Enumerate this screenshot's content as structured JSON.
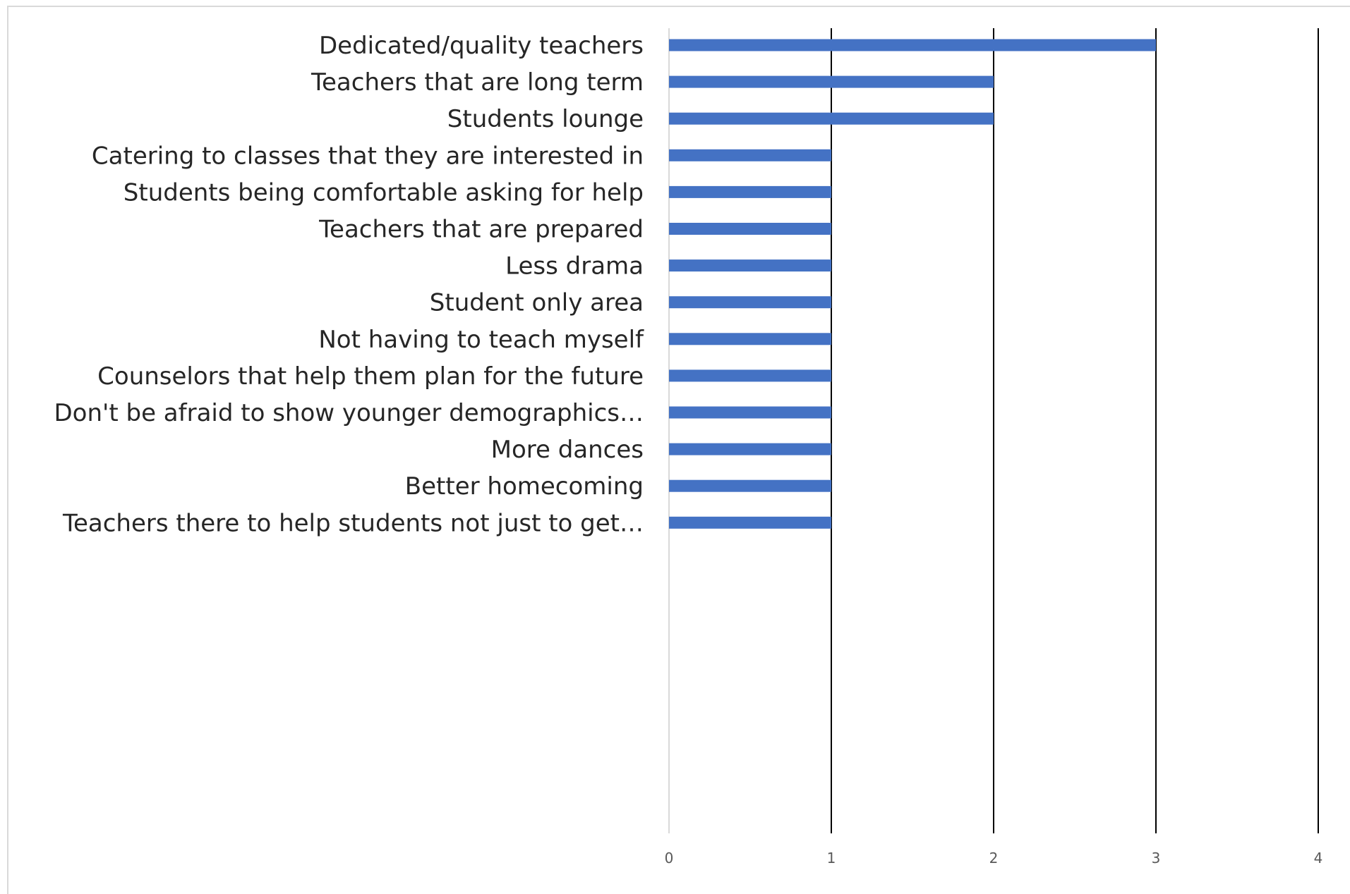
{
  "chart_data": {
    "type": "bar",
    "orientation": "horizontal",
    "categories": [
      "Dedicated/quality teachers",
      "Teachers that are long term",
      "Students lounge",
      "Catering to classes that they are interested in",
      "Students being comfortable asking for help",
      "Teachers that are prepared",
      "Less drama",
      "Student only area",
      "Not having to teach myself",
      "Counselors that help them plan for the future",
      "Don't be afraid to show younger demographics…",
      "More dances",
      "Better homecoming",
      "Teachers there to help students not just to get…"
    ],
    "values": [
      3,
      2,
      2,
      1,
      1,
      1,
      1,
      1,
      1,
      1,
      1,
      1,
      1,
      1
    ],
    "xlim": [
      0,
      4
    ],
    "xticks": [
      "0",
      "1",
      "2",
      "3",
      "4"
    ],
    "grid": true,
    "legend": "none",
    "title": "",
    "xlabel": "",
    "ylabel": "",
    "colors": {
      "bar": "#4472C4",
      "gridline": "#000000",
      "axis": "#d9d9d9",
      "label": "#262626",
      "tick": "#595959"
    }
  }
}
